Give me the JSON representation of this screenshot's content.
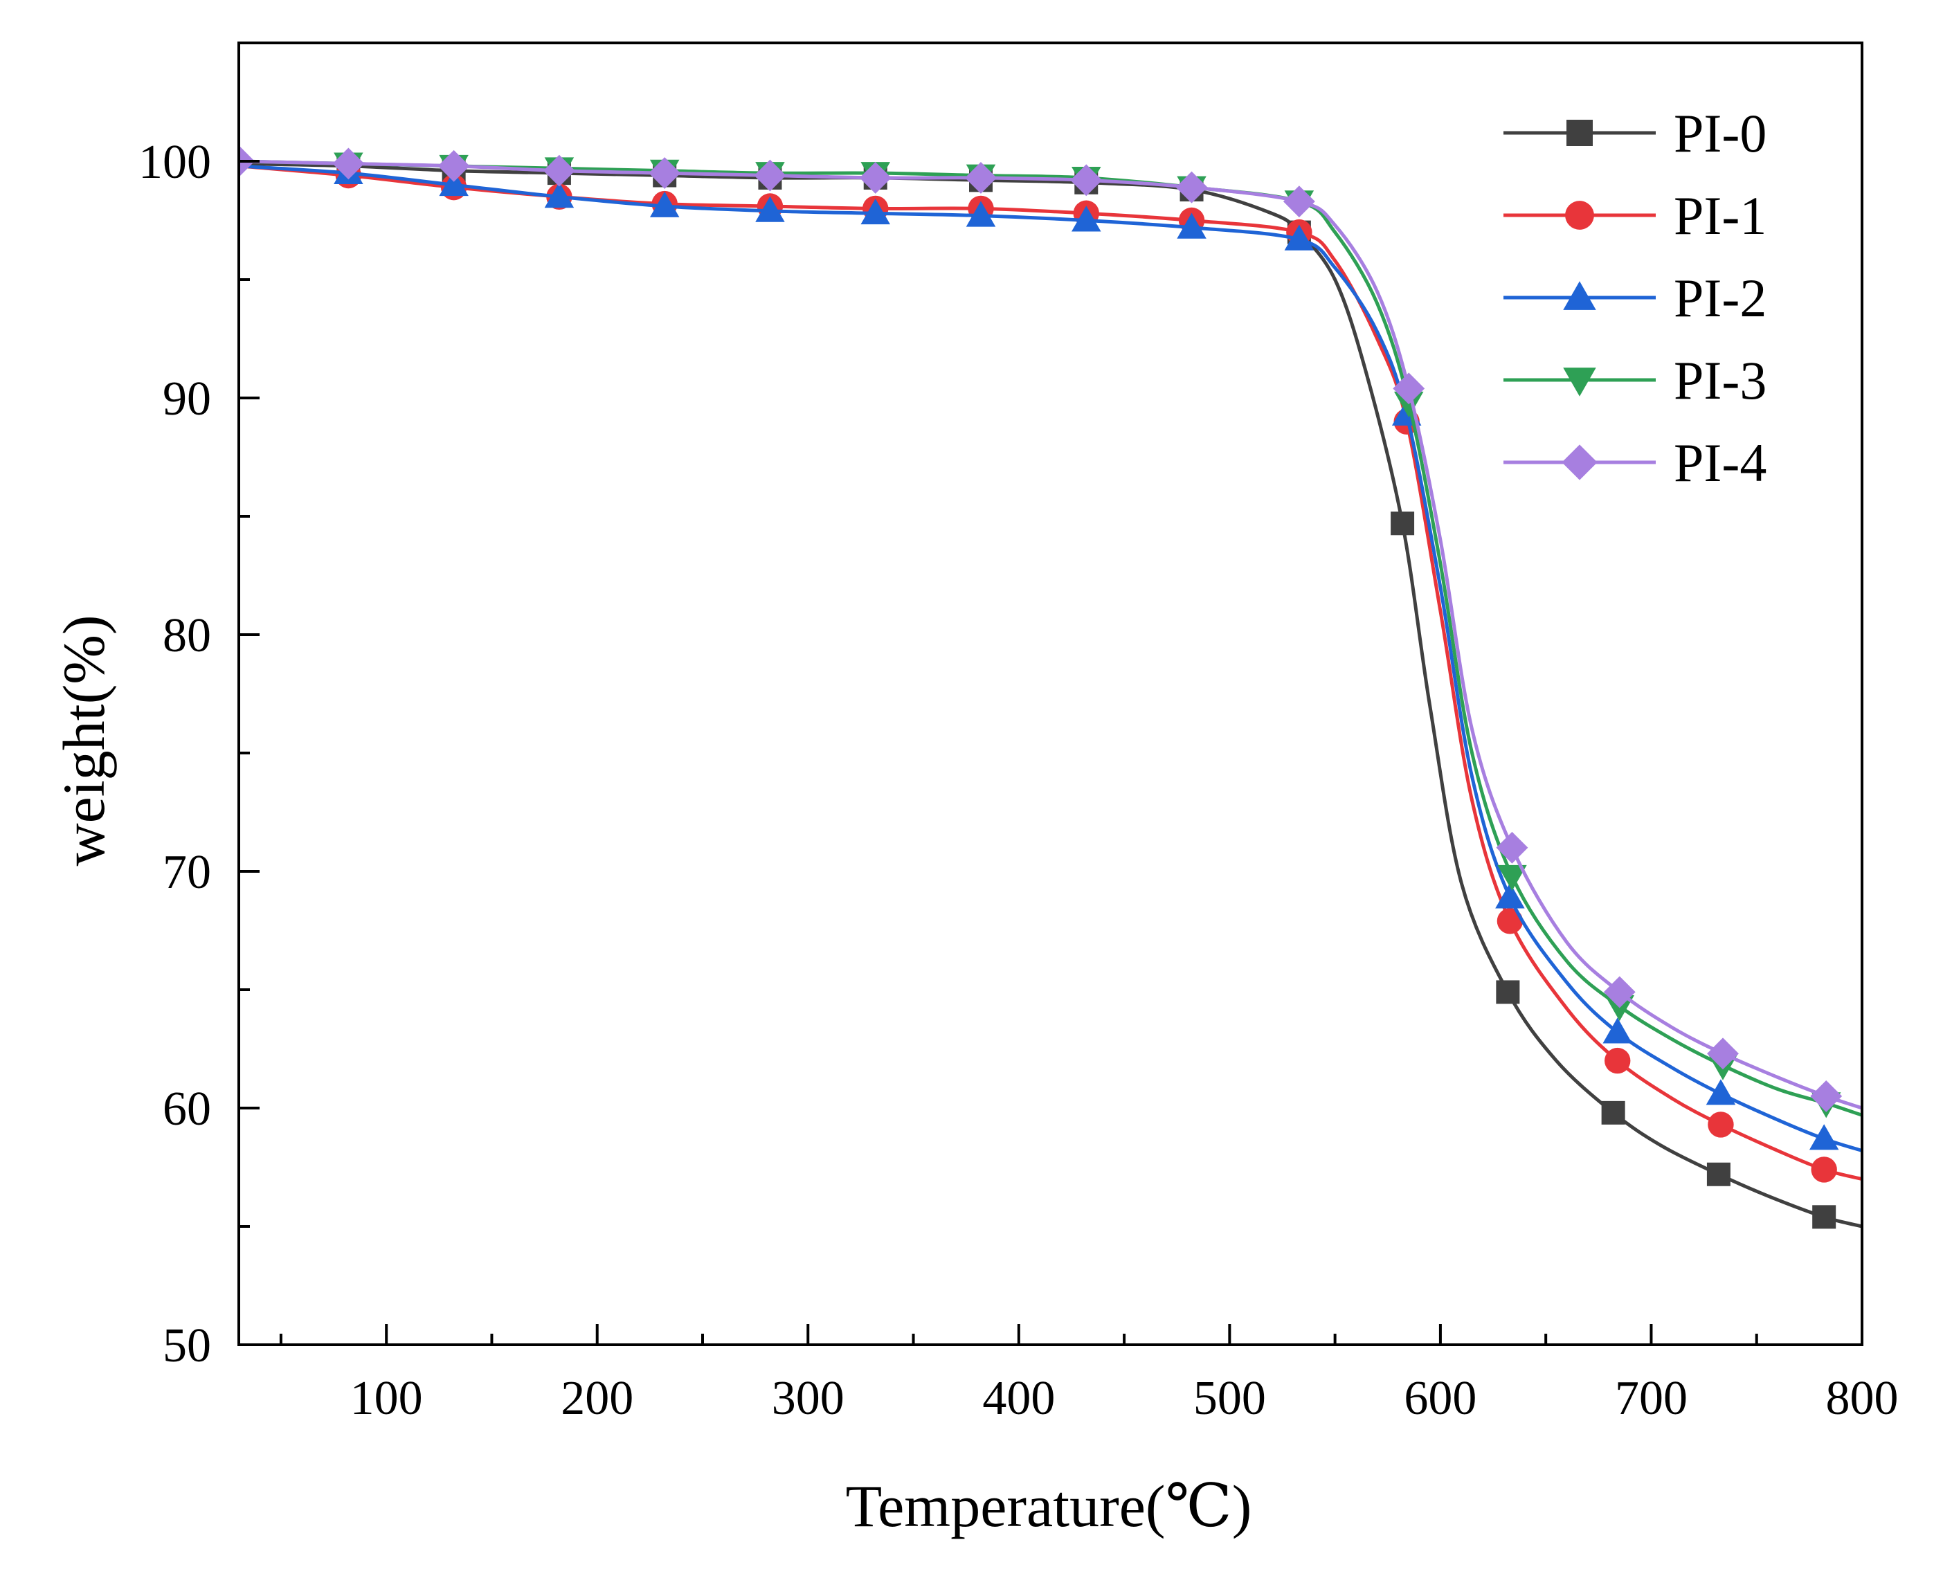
{
  "chart_data": {
    "type": "line",
    "title": "",
    "xlabel": "Temperature(℃)",
    "ylabel": "weight(%)",
    "xlim": [
      30,
      800
    ],
    "ylim": [
      50,
      105
    ],
    "xticks": [
      100,
      200,
      300,
      400,
      500,
      600,
      700,
      800
    ],
    "yticks": [
      50,
      60,
      70,
      80,
      90,
      100
    ],
    "grid": false,
    "legend_position": "top-right",
    "series": [
      {
        "name": "PI-0",
        "color": "#404040",
        "marker": "square",
        "points": [
          [
            30,
            99.9
          ],
          [
            82,
            99.8
          ],
          [
            132,
            99.6
          ],
          [
            182,
            99.5
          ],
          [
            232,
            99.4
          ],
          [
            282,
            99.3
          ],
          [
            332,
            99.3
          ],
          [
            382,
            99.2
          ],
          [
            432,
            99.1
          ],
          [
            482,
            98.8
          ],
          [
            520,
            97.8
          ],
          [
            533,
            97.0
          ],
          [
            550,
            95.0
          ],
          [
            565,
            91.0
          ],
          [
            582,
            84.7
          ],
          [
            595,
            77.0
          ],
          [
            610,
            69.5
          ],
          [
            632,
            64.9
          ],
          [
            655,
            62.0
          ],
          [
            682,
            59.8
          ],
          [
            705,
            58.4
          ],
          [
            732,
            57.2
          ],
          [
            755,
            56.3
          ],
          [
            782,
            55.4
          ],
          [
            800,
            55.0
          ]
        ],
        "markers": [
          [
            82,
            99.8
          ],
          [
            132,
            99.6
          ],
          [
            182,
            99.5
          ],
          [
            232,
            99.4
          ],
          [
            282,
            99.3
          ],
          [
            332,
            99.3
          ],
          [
            382,
            99.2
          ],
          [
            432,
            99.1
          ],
          [
            482,
            98.8
          ],
          [
            533,
            97.0
          ],
          [
            582,
            84.7
          ],
          [
            632,
            64.9
          ],
          [
            682,
            59.8
          ],
          [
            732,
            57.2
          ],
          [
            782,
            55.4
          ]
        ]
      },
      {
        "name": "PI-1",
        "color": "#e8353a",
        "marker": "circle",
        "points": [
          [
            30,
            99.8
          ],
          [
            82,
            99.4
          ],
          [
            132,
            98.9
          ],
          [
            182,
            98.5
          ],
          [
            232,
            98.2
          ],
          [
            282,
            98.1
          ],
          [
            332,
            98.0
          ],
          [
            382,
            98.0
          ],
          [
            432,
            97.8
          ],
          [
            482,
            97.5
          ],
          [
            533,
            97.0
          ],
          [
            550,
            95.8
          ],
          [
            570,
            92.5
          ],
          [
            584,
            89.0
          ],
          [
            600,
            81.0
          ],
          [
            615,
            73.0
          ],
          [
            633,
            67.9
          ],
          [
            660,
            64.2
          ],
          [
            684,
            62.0
          ],
          [
            710,
            60.4
          ],
          [
            733,
            59.3
          ],
          [
            760,
            58.2
          ],
          [
            782,
            57.4
          ],
          [
            800,
            57.0
          ]
        ],
        "markers": [
          [
            82,
            99.4
          ],
          [
            132,
            98.9
          ],
          [
            182,
            98.5
          ],
          [
            232,
            98.2
          ],
          [
            282,
            98.1
          ],
          [
            332,
            98.0
          ],
          [
            382,
            98.0
          ],
          [
            432,
            97.8
          ],
          [
            482,
            97.5
          ],
          [
            533,
            97.0
          ],
          [
            584,
            89.0
          ],
          [
            633,
            67.9
          ],
          [
            684,
            62.0
          ],
          [
            733,
            59.3
          ],
          [
            782,
            57.4
          ]
        ]
      },
      {
        "name": "PI-2",
        "color": "#1f64d6",
        "marker": "triangle-up",
        "points": [
          [
            30,
            99.8
          ],
          [
            82,
            99.5
          ],
          [
            132,
            99.0
          ],
          [
            182,
            98.5
          ],
          [
            232,
            98.1
          ],
          [
            282,
            97.9
          ],
          [
            332,
            97.8
          ],
          [
            382,
            97.7
          ],
          [
            432,
            97.5
          ],
          [
            482,
            97.2
          ],
          [
            533,
            96.7
          ],
          [
            550,
            95.5
          ],
          [
            570,
            92.8
          ],
          [
            584,
            89.3
          ],
          [
            600,
            82.0
          ],
          [
            615,
            74.0
          ],
          [
            633,
            68.9
          ],
          [
            660,
            65.3
          ],
          [
            684,
            63.2
          ],
          [
            710,
            61.7
          ],
          [
            733,
            60.6
          ],
          [
            760,
            59.5
          ],
          [
            782,
            58.7
          ],
          [
            800,
            58.2
          ]
        ],
        "markers": [
          [
            82,
            99.5
          ],
          [
            132,
            99.0
          ],
          [
            182,
            98.5
          ],
          [
            232,
            98.1
          ],
          [
            282,
            97.9
          ],
          [
            332,
            97.8
          ],
          [
            382,
            97.7
          ],
          [
            432,
            97.5
          ],
          [
            482,
            97.2
          ],
          [
            533,
            96.7
          ],
          [
            584,
            89.3
          ],
          [
            633,
            68.9
          ],
          [
            684,
            63.2
          ],
          [
            733,
            60.6
          ],
          [
            782,
            58.7
          ]
        ]
      },
      {
        "name": "PI-3",
        "color": "#2ea055",
        "marker": "triangle-down",
        "points": [
          [
            30,
            100.0
          ],
          [
            82,
            99.9
          ],
          [
            132,
            99.8
          ],
          [
            182,
            99.7
          ],
          [
            232,
            99.6
          ],
          [
            282,
            99.5
          ],
          [
            332,
            99.5
          ],
          [
            382,
            99.4
          ],
          [
            432,
            99.3
          ],
          [
            482,
            98.9
          ],
          [
            533,
            98.3
          ],
          [
            550,
            97.0
          ],
          [
            570,
            94.0
          ],
          [
            585,
            89.8
          ],
          [
            600,
            83.0
          ],
          [
            615,
            75.0
          ],
          [
            634,
            69.8
          ],
          [
            660,
            66.2
          ],
          [
            685,
            64.3
          ],
          [
            710,
            62.9
          ],
          [
            734,
            61.8
          ],
          [
            760,
            60.8
          ],
          [
            783,
            60.2
          ],
          [
            800,
            59.7
          ]
        ],
        "markers": [
          [
            82,
            99.9
          ],
          [
            132,
            99.8
          ],
          [
            182,
            99.7
          ],
          [
            232,
            99.6
          ],
          [
            282,
            99.5
          ],
          [
            332,
            99.5
          ],
          [
            382,
            99.4
          ],
          [
            432,
            99.3
          ],
          [
            482,
            98.9
          ],
          [
            533,
            98.3
          ],
          [
            585,
            89.8
          ],
          [
            634,
            69.8
          ],
          [
            685,
            64.3
          ],
          [
            734,
            61.8
          ],
          [
            783,
            60.2
          ]
        ]
      },
      {
        "name": "PI-4",
        "color": "#a77fe0",
        "marker": "diamond",
        "points": [
          [
            30,
            100.0
          ],
          [
            82,
            99.9
          ],
          [
            132,
            99.8
          ],
          [
            182,
            99.6
          ],
          [
            232,
            99.5
          ],
          [
            282,
            99.4
          ],
          [
            332,
            99.3
          ],
          [
            382,
            99.3
          ],
          [
            432,
            99.2
          ],
          [
            482,
            98.9
          ],
          [
            533,
            98.3
          ],
          [
            550,
            97.3
          ],
          [
            570,
            94.5
          ],
          [
            585,
            90.4
          ],
          [
            600,
            84.0
          ],
          [
            615,
            76.0
          ],
          [
            634,
            71.0
          ],
          [
            660,
            67.0
          ],
          [
            685,
            64.9
          ],
          [
            710,
            63.4
          ],
          [
            734,
            62.3
          ],
          [
            760,
            61.3
          ],
          [
            783,
            60.5
          ],
          [
            800,
            60.0
          ]
        ],
        "markers": [
          [
            30,
            100.0
          ],
          [
            82,
            99.9
          ],
          [
            132,
            99.8
          ],
          [
            182,
            99.6
          ],
          [
            232,
            99.5
          ],
          [
            282,
            99.4
          ],
          [
            332,
            99.3
          ],
          [
            382,
            99.3
          ],
          [
            432,
            99.2
          ],
          [
            482,
            98.9
          ],
          [
            533,
            98.3
          ],
          [
            585,
            90.4
          ],
          [
            634,
            71.0
          ],
          [
            685,
            64.9
          ],
          [
            734,
            62.3
          ],
          [
            783,
            60.5
          ]
        ]
      }
    ]
  }
}
